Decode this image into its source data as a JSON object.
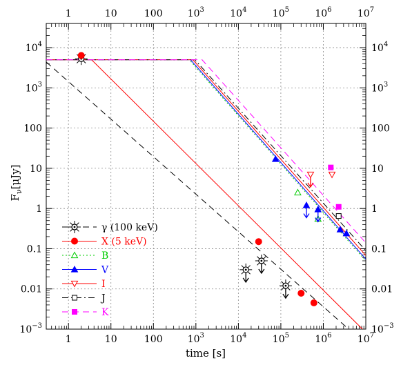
{
  "chart_data": {
    "type": "line",
    "title": "",
    "xlabel": "time [s]",
    "ylabel": "F",
    "ylabel_sub": "ν",
    "ylabel_unit": "[μJy]",
    "xscale": "log",
    "yscale": "log",
    "xlim": [
      0.3,
      10000000
    ],
    "ylim": [
      0.001,
      40000
    ],
    "grid": true,
    "legend_position": "bottom-left",
    "x_ticks": [
      {
        "value": 1,
        "base": "1",
        "exp": ""
      },
      {
        "value": 10,
        "base": "10",
        "exp": ""
      },
      {
        "value": 100,
        "base": "100",
        "exp": ""
      },
      {
        "value": 1000,
        "base": "10",
        "exp": "3"
      },
      {
        "value": 10000,
        "base": "10",
        "exp": "4"
      },
      {
        "value": 100000,
        "base": "10",
        "exp": "5"
      },
      {
        "value": 1000000,
        "base": "10",
        "exp": "6"
      },
      {
        "value": 10000000,
        "base": "10",
        "exp": "7"
      }
    ],
    "y_ticks": [
      {
        "value": 0.001,
        "base": "10",
        "exp": "−3"
      },
      {
        "value": 0.01,
        "base": "0.01",
        "exp": ""
      },
      {
        "value": 0.1,
        "base": "0.1",
        "exp": ""
      },
      {
        "value": 1,
        "base": "1",
        "exp": ""
      },
      {
        "value": 10,
        "base": "10",
        "exp": ""
      },
      {
        "value": 100,
        "base": "100",
        "exp": ""
      },
      {
        "value": 1000,
        "base": "10",
        "exp": "3"
      },
      {
        "value": 10000,
        "base": "10",
        "exp": "4"
      }
    ],
    "series": [
      {
        "name": "γ (100 keV)",
        "color": "#000000",
        "dash": "9,6",
        "marker": "gamma",
        "line": [
          [
            0.3,
            4400
          ],
          [
            20000000,
            0.00022
          ]
        ],
        "points": [
          [
            2,
            5300,
            false
          ],
          [
            15000,
            0.03,
            true
          ],
          [
            35000,
            0.05,
            true
          ],
          [
            130000,
            0.012,
            true
          ]
        ]
      },
      {
        "name": "X (5 keV)",
        "color": "#ff0000",
        "dash": "",
        "marker": "circle",
        "line": [
          [
            0.3,
            5000
          ],
          [
            3.5,
            5000
          ],
          [
            20000000,
            0.0004
          ]
        ],
        "points": [
          [
            2,
            6400,
            false
          ],
          [
            30000,
            0.15,
            false
          ],
          [
            300000,
            0.0078,
            false
          ],
          [
            600000,
            0.0045,
            false
          ]
        ]
      },
      {
        "name": "B",
        "color": "#00cc00",
        "dash": "2,3",
        "marker": "triangle-up-open",
        "line": [
          [
            0.3,
            5000
          ],
          [
            700,
            5000
          ],
          [
            10000000,
            0.05
          ]
        ],
        "points": [
          [
            250000,
            2.5,
            false
          ],
          [
            750000,
            0.55,
            false
          ]
        ]
      },
      {
        "name": "V",
        "color": "#0000ff",
        "dash": "",
        "marker": "triangle-up-filled",
        "line": [
          [
            0.3,
            5000
          ],
          [
            750,
            5000
          ],
          [
            10000000,
            0.055
          ]
        ],
        "points": [
          [
            75000,
            17,
            false
          ],
          [
            400000,
            1.2,
            true
          ],
          [
            750000,
            0.95,
            true
          ],
          [
            2500000,
            0.3,
            false
          ],
          [
            3500000,
            0.24,
            false
          ]
        ]
      },
      {
        "name": "I",
        "color": "#ff0000",
        "dash": "",
        "marker": "triangle-down-open",
        "line": [
          [
            0.3,
            5000
          ],
          [
            850,
            5000
          ],
          [
            10000000,
            0.068
          ]
        ],
        "points": [
          [
            500000,
            7,
            true
          ],
          [
            1600000,
            7,
            false
          ]
        ]
      },
      {
        "name": "J",
        "color": "#000000",
        "dash": "9,4,2,4",
        "marker": "square-open",
        "line": [
          [
            0.3,
            5000
          ],
          [
            950,
            5000
          ],
          [
            10000000,
            0.09
          ]
        ],
        "points": [
          [
            2300000,
            0.65,
            false
          ]
        ]
      },
      {
        "name": "K",
        "color": "#ff00ff",
        "dash": "9,6",
        "marker": "square-filled",
        "line": [
          [
            0.3,
            5000
          ],
          [
            1400,
            5000
          ],
          [
            10000000,
            0.14
          ]
        ],
        "points": [
          [
            1500000,
            10.5,
            false
          ],
          [
            2300000,
            1.1,
            false
          ]
        ]
      }
    ]
  }
}
